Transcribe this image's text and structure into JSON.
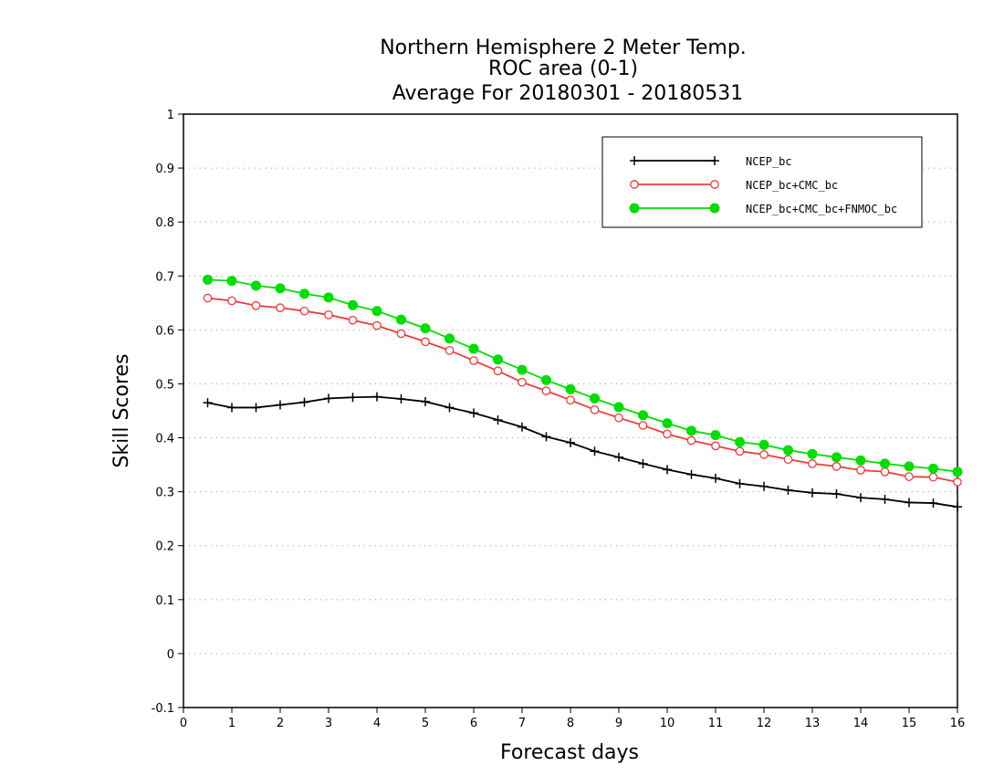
{
  "chart_data": {
    "type": "line",
    "title": [
      "Northern Hemisphere 2 Meter Temp.",
      "ROC area (0-1)",
      "Average For 20180301 - 20180531"
    ],
    "xlabel": "Forecast days",
    "ylabel": "Skill Scores",
    "xlim": [
      0,
      16
    ],
    "ylim": [
      -0.1,
      1
    ],
    "xticks": [
      0,
      1,
      2,
      3,
      4,
      5,
      6,
      7,
      8,
      9,
      10,
      11,
      12,
      13,
      14,
      15,
      16
    ],
    "yticks": [
      -0.1,
      0,
      0.1,
      0.2,
      0.3,
      0.4,
      0.5,
      0.6,
      0.7,
      0.8,
      0.9,
      1
    ],
    "ytick_labels": [
      "-0.1",
      "0",
      "0.1",
      "0.2",
      "0.3",
      "0.4",
      "0.5",
      "0.6",
      "0.7",
      "0.8",
      "0.9",
      "1"
    ],
    "grid": "horizontal dotted",
    "legend_position": "top-right",
    "x": [
      0.5,
      1,
      1.5,
      2,
      2.5,
      3,
      3.5,
      4,
      4.5,
      5,
      5.5,
      6,
      6.5,
      7,
      7.5,
      8,
      8.5,
      9,
      9.5,
      10,
      10.5,
      11,
      11.5,
      12,
      12.5,
      13,
      13.5,
      14,
      14.5,
      15,
      15.5,
      16
    ],
    "series": [
      {
        "name": "NCEP_bc",
        "color": "#000000",
        "marker": "plus",
        "values": [
          0.465,
          0.456,
          0.456,
          0.461,
          0.466,
          0.473,
          0.475,
          0.476,
          0.472,
          0.467,
          0.456,
          0.446,
          0.433,
          0.42,
          0.402,
          0.391,
          0.375,
          0.364,
          0.352,
          0.341,
          0.332,
          0.325,
          0.315,
          0.31,
          0.303,
          0.298,
          0.296,
          0.289,
          0.286,
          0.28,
          0.279,
          0.272
        ]
      },
      {
        "name": "NCEP_bc+CMC_bc",
        "color": "#ee3b3b",
        "marker": "open-circle",
        "values": [
          0.659,
          0.654,
          0.645,
          0.641,
          0.635,
          0.628,
          0.618,
          0.608,
          0.593,
          0.578,
          0.562,
          0.543,
          0.524,
          0.503,
          0.487,
          0.47,
          0.452,
          0.437,
          0.423,
          0.407,
          0.395,
          0.385,
          0.375,
          0.369,
          0.36,
          0.352,
          0.347,
          0.34,
          0.337,
          0.328,
          0.327,
          0.318
        ]
      },
      {
        "name": "NCEP_bc+CMC_bc+FNMOC_bc",
        "color": "#00dd00",
        "marker": "filled-circle",
        "values": [
          0.693,
          0.691,
          0.682,
          0.677,
          0.667,
          0.66,
          0.646,
          0.635,
          0.619,
          0.603,
          0.584,
          0.565,
          0.545,
          0.526,
          0.507,
          0.49,
          0.473,
          0.457,
          0.442,
          0.427,
          0.413,
          0.405,
          0.392,
          0.387,
          0.377,
          0.37,
          0.364,
          0.358,
          0.352,
          0.347,
          0.343,
          0.337
        ]
      }
    ]
  }
}
